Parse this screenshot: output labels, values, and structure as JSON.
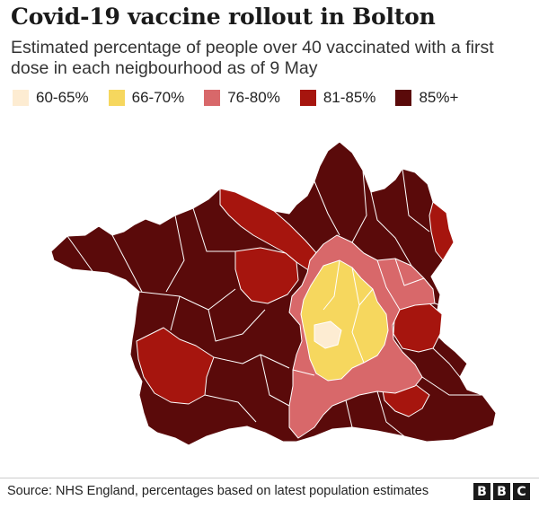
{
  "title": "Covid-19 vaccine rollout in Bolton",
  "subtitle": "Estimated percentage of people over 40 vaccinated with a first dose in each neigbourhood as of 9 May",
  "legend": [
    {
      "label": "60-65%",
      "color": "#fdecd2"
    },
    {
      "label": "66-70%",
      "color": "#f6d75e"
    },
    {
      "label": "76-80%",
      "color": "#d8686a"
    },
    {
      "label": "81-85%",
      "color": "#a6150e"
    },
    {
      "label": "85%+",
      "color": "#5a0a0a"
    }
  ],
  "map": {
    "region": "Bolton",
    "neighbourhood_categories": [
      "60-65%",
      "66-70%",
      "76-80%",
      "81-85%",
      "85%+"
    ]
  },
  "footer": {
    "source": "Source: NHS England, percentages based on latest population estimates",
    "logo_letters": [
      "B",
      "B",
      "C"
    ]
  }
}
